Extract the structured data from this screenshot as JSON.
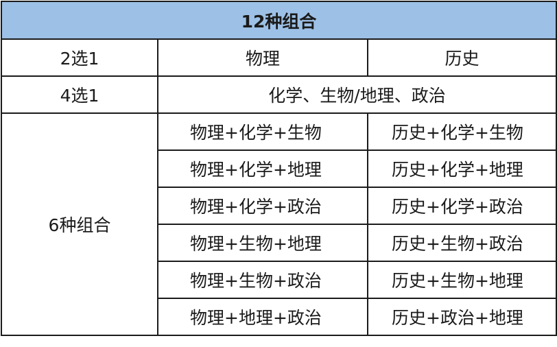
{
  "title": "12种组合",
  "header_color": "#9dc0e6",
  "row_choose2": {
    "label": "2选1",
    "options": [
      "物理",
      "历史"
    ]
  },
  "row_choose4": {
    "label": "4选1",
    "options": "化学、生物/地理、政治"
  },
  "combinations": {
    "label": "6种组合",
    "rows": [
      [
        "物理+化学+生物",
        "历史+化学+生物"
      ],
      [
        "物理+化学+地理",
        "历史+化学+地理"
      ],
      [
        "物理+化学+政治",
        "历史+化学+政治"
      ],
      [
        "物理+生物+地理",
        "历史+生物+政治"
      ],
      [
        "物理+生物+政治",
        "历史+生物+地理"
      ],
      [
        "物理+地理+政治",
        "历史+政治+地理"
      ]
    ]
  }
}
